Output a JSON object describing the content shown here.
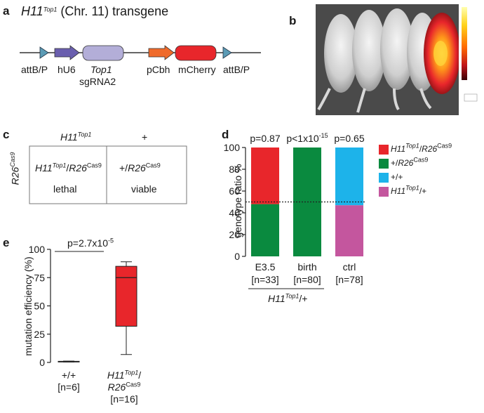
{
  "panel_a": {
    "letter": "a",
    "title_gene": "H11",
    "title_sup": "Top1",
    "title_rest": " (Chr. 11) transgene",
    "labels": {
      "attb_left": "attB/P",
      "hu6": "hU6",
      "top1": "Top1",
      "sgrna": "sgRNA2",
      "pcbh": "pCbh",
      "mcherry": "mCherry",
      "attb_right": "attB/P"
    },
    "colors": {
      "attb": "#5b9bb5",
      "hu6": "#6a5fae",
      "top1": "#b3aed8",
      "pcbh": "#ef6a2b",
      "mcherry": "#e8262b"
    }
  },
  "panel_b": {
    "letter": "b"
  },
  "panel_c": {
    "letter": "c",
    "col1_gene": "H11",
    "col1_sup": "Top1",
    "col2": "+",
    "row_gene": "R26",
    "row_sup": "Cas9",
    "cell1_gene": "H11",
    "cell1_sup": "Top1",
    "cell1_sep": "/",
    "cell1_gene2": "R26",
    "cell1_sup2": "Cas9",
    "cell1_status": "lethal",
    "cell2_pre": "+/",
    "cell2_gene": "R26",
    "cell2_sup": "Cas9",
    "cell2_status": "viable"
  },
  "panel_d": {
    "letter": "d",
    "ylabel": "genotype ratio %",
    "underline_gene": "H11",
    "underline_sup": "Top1",
    "underline_rest": "/+",
    "legend": [
      {
        "gene": "H11",
        "sup": "Top1",
        "sep": "/",
        "gene2": "R26",
        "sup2": "Cas9",
        "color": "#e8262b"
      },
      {
        "pre": "+/",
        "gene2": "R26",
        "sup2": "Cas9",
        "color": "#0a8a3f"
      },
      {
        "pre": "+/+",
        "color": "#1db3ea"
      },
      {
        "gene": "H11",
        "sup": "Top1",
        "post": "/+",
        "color": "#c4569e"
      }
    ]
  },
  "panel_e": {
    "letter": "e",
    "ylabel": "mutation efficiency (%)",
    "pvalue": "p=2.7x10",
    "pvalue_exp": "-5",
    "cat1_line1": "+/+",
    "cat1_line2": "[n=6]",
    "cat2_gene": "H11",
    "cat2_sup": "Top1",
    "cat2_slash": "/",
    "cat2_gene2": "R26",
    "cat2_sup2": "Cas9",
    "cat2_line3": "[n=16]"
  },
  "chart_data": [
    {
      "type": "bar",
      "stacked": true,
      "categories": [
        "E3.5",
        "birth",
        "ctrl"
      ],
      "category_n": [
        "[n=33]",
        "[n=80]",
        "[n=78]"
      ],
      "pvalues": [
        {
          "base": "p=0.87",
          "exp": ""
        },
        {
          "base": "p<1x10",
          "exp": "-15"
        },
        {
          "base": "p=0.65",
          "exp": ""
        }
      ],
      "ylim": [
        0,
        100
      ],
      "yticks": [
        0,
        20,
        40,
        60,
        80,
        100
      ],
      "reference_line": 50,
      "series": [
        {
          "color": "#0a8a3f",
          "values": [
            48,
            100,
            0
          ]
        },
        {
          "color": "#e8262b",
          "values": [
            52,
            0,
            0
          ]
        },
        {
          "color": "#c4569e",
          "values": [
            0,
            0,
            47
          ]
        },
        {
          "color": "#1db3ea",
          "values": [
            0,
            0,
            53
          ]
        }
      ]
    },
    {
      "type": "box",
      "ylim": [
        0,
        100
      ],
      "yticks": [
        0,
        25,
        50,
        75,
        100
      ],
      "boxes": [
        {
          "min": 0.3,
          "q1": 0.6,
          "median": 0.8,
          "q3": 1.0,
          "max": 1.2,
          "color": "#d9d9d9"
        },
        {
          "min": 7,
          "q1": 32,
          "median": 75,
          "q3": 85,
          "max": 89,
          "color": "#e8262b"
        }
      ]
    }
  ]
}
